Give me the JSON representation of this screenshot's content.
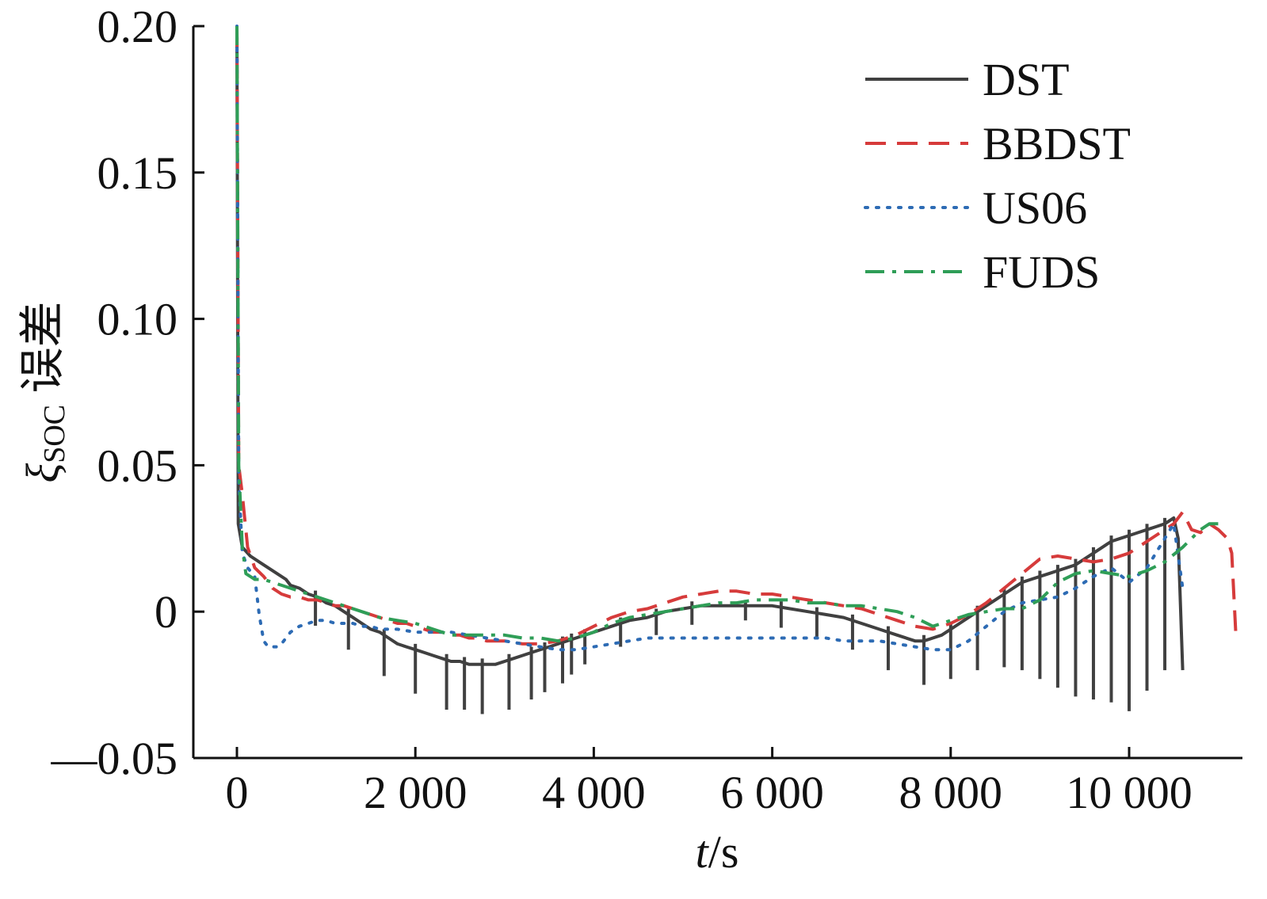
{
  "chart_data": {
    "type": "line",
    "xlabel_var": "t",
    "xlabel_unit": "s",
    "ylabel_symbol": "ξ",
    "ylabel_sub": "SOC",
    "ylabel_text": " 误差",
    "xlim": [
      -250,
      11700
    ],
    "ylim": [
      -0.05,
      0.2
    ],
    "xticks": [
      0,
      2000,
      4000,
      6000,
      8000,
      10000
    ],
    "xtick_labels": [
      "0",
      "2 000",
      "4 000",
      "6 000",
      "8 000",
      "10 000"
    ],
    "yticks": [
      -0.05,
      0,
      0.05,
      0.1,
      0.15,
      0.2
    ],
    "ytick_labels": [
      "—0.05",
      "0",
      "0.05",
      "0.10",
      "0.15",
      "0.20"
    ],
    "grid": false,
    "legend_position": "top-right",
    "series": [
      {
        "name": "DST",
        "color": "#404040",
        "dash": "solid",
        "x": [
          0,
          15,
          60,
          150,
          250,
          350,
          450,
          550,
          600,
          700,
          800,
          900,
          1000,
          1100,
          1200,
          1300,
          1400,
          1500,
          1600,
          1700,
          1800,
          1900,
          2000,
          2100,
          2200,
          2300,
          2400,
          2500,
          2600,
          2700,
          2800,
          2900,
          3000,
          3100,
          3200,
          3300,
          3400,
          3500,
          3600,
          3700,
          3800,
          3900,
          4000,
          4200,
          4400,
          4600,
          4800,
          5000,
          5200,
          5400,
          5600,
          5800,
          6000,
          6200,
          6400,
          6600,
          6800,
          7000,
          7200,
          7300,
          7400,
          7500,
          7600,
          7700,
          7800,
          7900,
          8000,
          8100,
          8200,
          8300,
          8400,
          8500,
          8600,
          8700,
          8800,
          8900,
          9000,
          9100,
          9200,
          9300,
          9400,
          9500,
          9600,
          9700,
          9800,
          9900,
          10000,
          10100,
          10200,
          10300,
          10400,
          10500,
          10550,
          10600
        ],
        "y": [
          0.2,
          0.03,
          0.022,
          0.019,
          0.017,
          0.015,
          0.013,
          0.011,
          0.009,
          0.008,
          0.006,
          0.005,
          0.003,
          0.002,
          0.0,
          -0.002,
          -0.004,
          -0.006,
          -0.007,
          -0.009,
          -0.011,
          -0.012,
          -0.013,
          -0.014,
          -0.015,
          -0.016,
          -0.017,
          -0.017,
          -0.018,
          -0.018,
          -0.018,
          -0.018,
          -0.017,
          -0.016,
          -0.015,
          -0.014,
          -0.013,
          -0.012,
          -0.011,
          -0.01,
          -0.009,
          -0.008,
          -0.007,
          -0.005,
          -0.003,
          -0.002,
          0.0,
          0.001,
          0.002,
          0.002,
          0.002,
          0.002,
          0.002,
          0.001,
          0.0,
          -0.001,
          -0.002,
          -0.004,
          -0.006,
          -0.007,
          -0.008,
          -0.009,
          -0.01,
          -0.01,
          -0.009,
          -0.008,
          -0.006,
          -0.004,
          -0.002,
          0.0,
          0.002,
          0.004,
          0.006,
          0.008,
          0.01,
          0.011,
          0.012,
          0.013,
          0.014,
          0.015,
          0.016,
          0.018,
          0.02,
          0.022,
          0.024,
          0.025,
          0.026,
          0.027,
          0.028,
          0.029,
          0.03,
          0.032,
          0.025,
          -0.02
        ],
        "spikes_x": [
          880,
          1250,
          1650,
          2000,
          2350,
          2550,
          2750,
          3050,
          3300,
          3450,
          3650,
          3750,
          3900,
          4300,
          4700,
          5100,
          5700,
          6100,
          6500,
          6900,
          7300,
          7700,
          8000,
          8300,
          8600,
          8800,
          9000,
          9200,
          9400,
          9600,
          9800,
          10000,
          10200,
          10400
        ],
        "spikes_depth": [
          0.01,
          0.012,
          0.014,
          0.015,
          0.017,
          0.016,
          0.017,
          0.017,
          0.016,
          0.015,
          0.014,
          0.012,
          0.01,
          0.008,
          0.007,
          0.006,
          0.005,
          0.007,
          0.008,
          0.01,
          0.013,
          0.015,
          0.017,
          0.02,
          0.025,
          0.03,
          0.035,
          0.04,
          0.045,
          0.05,
          0.055,
          0.06,
          0.055,
          0.05
        ]
      },
      {
        "name": "BBDST",
        "color": "#d63b3b",
        "dash": "dashed",
        "x": [
          0,
          20,
          60,
          120,
          200,
          300,
          400,
          500,
          600,
          700,
          800,
          900,
          1000,
          1100,
          1200,
          1300,
          1400,
          1500,
          1600,
          1700,
          1800,
          1900,
          2000,
          2100,
          2200,
          2300,
          2400,
          2500,
          2600,
          2700,
          2800,
          2900,
          3000,
          3200,
          3400,
          3600,
          3800,
          4000,
          4200,
          4400,
          4600,
          4800,
          5000,
          5200,
          5400,
          5600,
          5800,
          6000,
          6200,
          6400,
          6600,
          6800,
          7000,
          7200,
          7400,
          7600,
          7800,
          8000,
          8200,
          8400,
          8600,
          8800,
          9000,
          9200,
          9400,
          9600,
          9800,
          10000,
          10200,
          10400,
          10500,
          10600,
          10700,
          10800,
          10900,
          11000,
          11100,
          11150,
          11200
        ],
        "y": [
          0.2,
          0.05,
          0.04,
          0.022,
          0.015,
          0.012,
          0.008,
          0.006,
          0.005,
          0.005,
          0.004,
          0.004,
          0.003,
          0.002,
          0.002,
          0.001,
          0.0,
          -0.001,
          -0.002,
          -0.003,
          -0.004,
          -0.004,
          -0.005,
          -0.006,
          -0.007,
          -0.007,
          -0.008,
          -0.008,
          -0.009,
          -0.009,
          -0.01,
          -0.01,
          -0.01,
          -0.011,
          -0.011,
          -0.01,
          -0.008,
          -0.005,
          -0.002,
          0.0,
          0.001,
          0.003,
          0.005,
          0.006,
          0.007,
          0.007,
          0.006,
          0.006,
          0.005,
          0.004,
          0.003,
          0.002,
          0.001,
          -0.001,
          -0.003,
          -0.005,
          -0.006,
          -0.004,
          -0.001,
          0.003,
          0.008,
          0.013,
          0.018,
          0.019,
          0.018,
          0.017,
          0.018,
          0.02,
          0.024,
          0.028,
          0.03,
          0.034,
          0.028,
          0.027,
          0.03,
          0.028,
          0.025,
          0.02,
          -0.01
        ]
      },
      {
        "name": "US06",
        "color": "#2d6bb4",
        "dash": "dotted",
        "x": [
          0,
          20,
          60,
          120,
          200,
          250,
          300,
          350,
          400,
          450,
          500,
          550,
          600,
          700,
          800,
          900,
          1000,
          1100,
          1200,
          1300,
          1400,
          1500,
          1600,
          1800,
          2000,
          2200,
          2400,
          2600,
          2800,
          3000,
          3200,
          3400,
          3600,
          3800,
          4000,
          4200,
          4400,
          4600,
          4800,
          5000,
          5200,
          5400,
          5600,
          5800,
          6000,
          6200,
          6400,
          6600,
          6800,
          7000,
          7200,
          7400,
          7600,
          7800,
          8000,
          8200,
          8400,
          8600,
          8800,
          9000,
          9200,
          9400,
          9600,
          9800,
          10000,
          10200,
          10400,
          10500,
          10600
        ],
        "y": [
          0.2,
          0.045,
          0.02,
          0.015,
          0.012,
          -0.001,
          -0.01,
          -0.012,
          -0.012,
          -0.012,
          -0.011,
          -0.009,
          -0.007,
          -0.005,
          -0.004,
          -0.003,
          -0.003,
          -0.004,
          -0.004,
          -0.004,
          -0.005,
          -0.005,
          -0.006,
          -0.006,
          -0.007,
          -0.007,
          -0.007,
          -0.008,
          -0.009,
          -0.01,
          -0.011,
          -0.012,
          -0.013,
          -0.013,
          -0.012,
          -0.011,
          -0.01,
          -0.009,
          -0.009,
          -0.009,
          -0.009,
          -0.009,
          -0.009,
          -0.009,
          -0.009,
          -0.009,
          -0.009,
          -0.009,
          -0.01,
          -0.01,
          -0.01,
          -0.011,
          -0.012,
          -0.013,
          -0.013,
          -0.01,
          -0.005,
          0.0,
          0.003,
          0.004,
          0.005,
          0.008,
          0.012,
          0.015,
          0.01,
          0.015,
          0.025,
          0.03,
          0.008
        ]
      },
      {
        "name": "FUDS",
        "color": "#2f9e57",
        "dash": "dashdot",
        "x": [
          0,
          20,
          60,
          100,
          200,
          300,
          400,
          500,
          600,
          700,
          800,
          900,
          1000,
          1200,
          1400,
          1600,
          1800,
          2000,
          2200,
          2400,
          2600,
          2800,
          3000,
          3200,
          3400,
          3600,
          3800,
          4000,
          4200,
          4400,
          4600,
          4800,
          5000,
          5200,
          5400,
          5600,
          5800,
          6000,
          6200,
          6400,
          6600,
          6800,
          7000,
          7200,
          7400,
          7600,
          7800,
          8000,
          8200,
          8400,
          8600,
          8800,
          9000,
          9200,
          9400,
          9600,
          9800,
          10000,
          10200,
          10400,
          10600,
          10800,
          10900,
          11000,
          11050
        ],
        "y": [
          0.2,
          0.05,
          0.022,
          0.013,
          0.011,
          0.011,
          0.01,
          0.009,
          0.008,
          0.007,
          0.006,
          0.005,
          0.004,
          0.002,
          0.0,
          -0.002,
          -0.003,
          -0.004,
          -0.006,
          -0.008,
          -0.008,
          -0.008,
          -0.008,
          -0.009,
          -0.009,
          -0.01,
          -0.009,
          -0.007,
          -0.004,
          -0.002,
          -0.001,
          0.0,
          0.001,
          0.002,
          0.003,
          0.003,
          0.004,
          0.004,
          0.004,
          0.003,
          0.003,
          0.002,
          0.002,
          0.001,
          0.0,
          -0.002,
          -0.005,
          -0.003,
          -0.001,
          0.0,
          0.001,
          0.001,
          0.004,
          0.01,
          0.013,
          0.014,
          0.013,
          0.012,
          0.014,
          0.017,
          0.022,
          0.028,
          0.03,
          0.03,
          0.029
        ]
      }
    ]
  }
}
